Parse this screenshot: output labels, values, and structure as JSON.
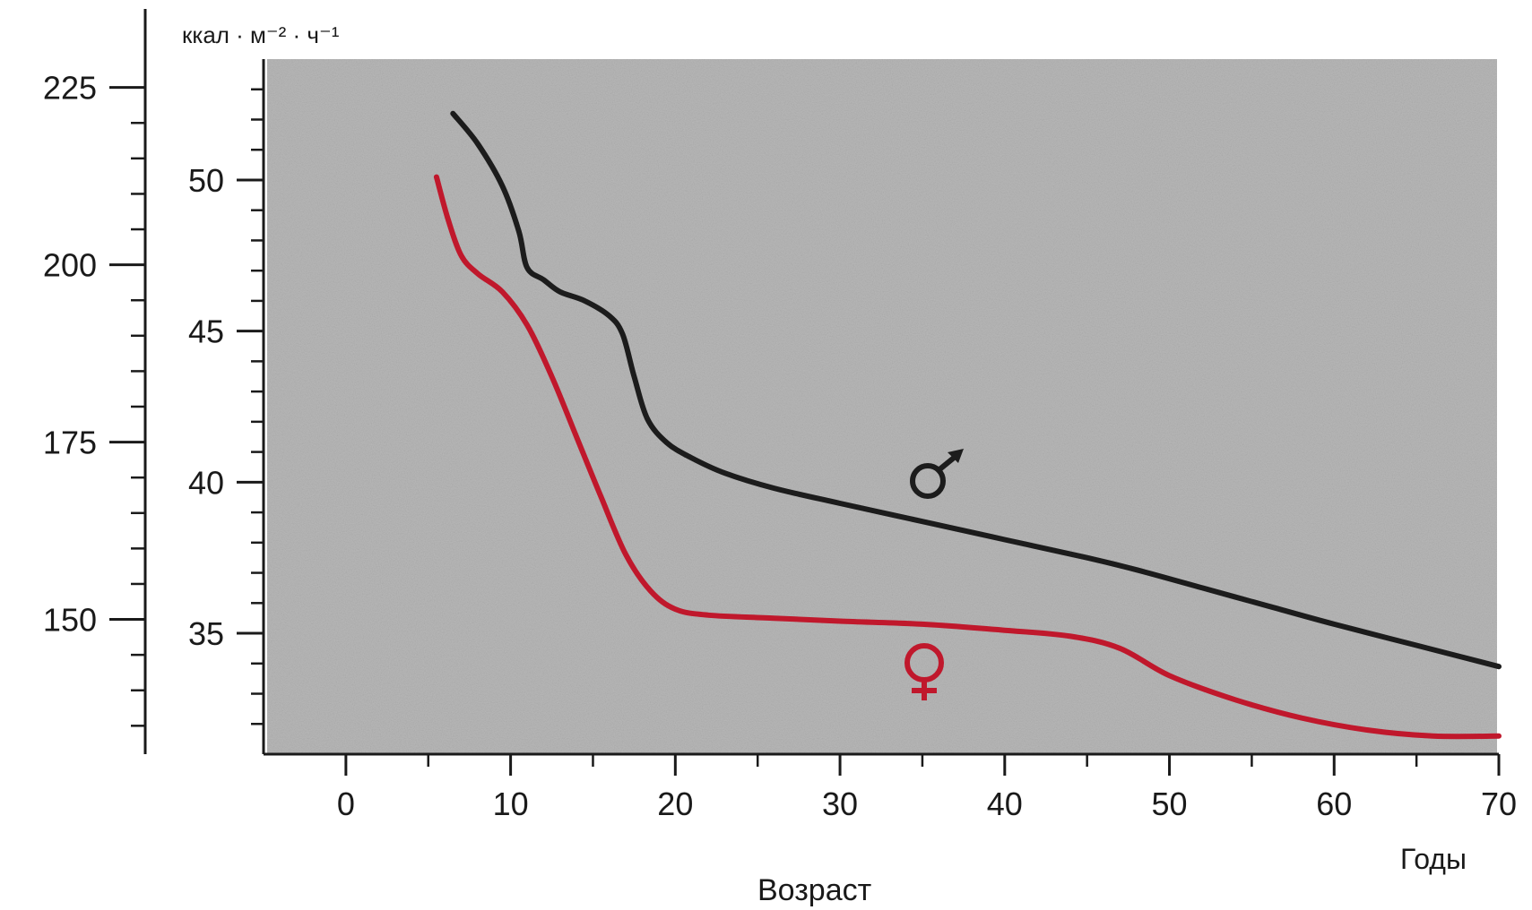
{
  "chart_data": {
    "type": "line",
    "title": "",
    "xlabel": "Возраст",
    "xunit": "Годы",
    "left_axis_label": "",
    "right_axis_unit": "ккал · м⁻² · ч⁻¹",
    "x_ticks": [
      0,
      10,
      20,
      30,
      40,
      50,
      60,
      70
    ],
    "xlim": [
      -5,
      70
    ],
    "outer_y_ticks": [
      150,
      175,
      200,
      225
    ],
    "outer_ylim": [
      131,
      229
    ],
    "inner_y_ticks": [
      35,
      40,
      45,
      50
    ],
    "inner_ylim": [
      31,
      54
    ],
    "grid": false,
    "legend": "symbols on plot",
    "series": [
      {
        "name": "♂",
        "color": "#1c1c1c",
        "points": [
          [
            6.5,
            52.2
          ],
          [
            8,
            51.2
          ],
          [
            9.5,
            49.8
          ],
          [
            10.5,
            48.3
          ],
          [
            11,
            47.1
          ],
          [
            12,
            46.7
          ],
          [
            13,
            46.3
          ],
          [
            14.5,
            46.0
          ],
          [
            16,
            45.5
          ],
          [
            16.8,
            44.9
          ],
          [
            17.5,
            43.5
          ],
          [
            18.3,
            42.1
          ],
          [
            19.5,
            41.3
          ],
          [
            21,
            40.8
          ],
          [
            23,
            40.3
          ],
          [
            26,
            39.8
          ],
          [
            30,
            39.3
          ],
          [
            35,
            38.7
          ],
          [
            40,
            38.1
          ],
          [
            45,
            37.5
          ],
          [
            48,
            37.1
          ],
          [
            52,
            36.5
          ],
          [
            56,
            35.9
          ],
          [
            60,
            35.3
          ],
          [
            65,
            34.6
          ],
          [
            70,
            33.9
          ]
        ]
      },
      {
        "name": "♀",
        "color": "#c0182c",
        "points": [
          [
            5.5,
            50.1
          ],
          [
            6.2,
            48.7
          ],
          [
            7,
            47.5
          ],
          [
            8,
            46.9
          ],
          [
            9.5,
            46.3
          ],
          [
            11,
            45.2
          ],
          [
            12.5,
            43.5
          ],
          [
            14,
            41.5
          ],
          [
            15.5,
            39.5
          ],
          [
            17,
            37.6
          ],
          [
            18.5,
            36.4
          ],
          [
            20,
            35.8
          ],
          [
            22,
            35.6
          ],
          [
            26,
            35.5
          ],
          [
            30,
            35.4
          ],
          [
            35,
            35.3
          ],
          [
            40,
            35.1
          ],
          [
            44,
            34.9
          ],
          [
            47,
            34.5
          ],
          [
            50,
            33.6
          ],
          [
            54,
            32.8
          ],
          [
            58,
            32.2
          ],
          [
            62,
            31.8
          ],
          [
            66,
            31.6
          ],
          [
            70,
            31.6
          ]
        ]
      }
    ]
  },
  "colors": {
    "plot_background": "#b8b8b8",
    "axis": "#1a1a1a"
  }
}
